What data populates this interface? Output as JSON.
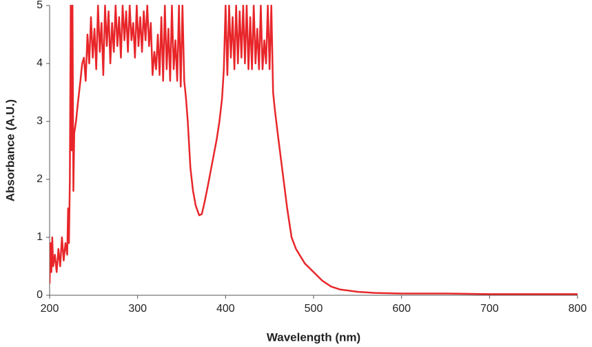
{
  "chart_data": {
    "type": "line",
    "x_label": "Wavelength (nm)",
    "y_label": "Absorbance (A.U.)",
    "x": [
      200,
      201,
      202,
      203,
      204,
      206,
      208,
      210,
      212,
      214,
      216,
      218,
      220,
      221,
      222,
      223,
      224,
      225,
      226,
      227,
      228,
      230,
      232,
      235,
      237,
      239,
      241,
      243,
      245,
      247,
      249,
      251,
      253,
      255,
      257,
      259,
      261,
      263,
      265,
      267,
      269,
      271,
      273,
      275,
      277,
      279,
      281,
      283,
      285,
      287,
      289,
      291,
      293,
      295,
      297,
      299,
      301,
      303,
      305,
      307,
      309,
      311,
      313,
      315,
      317,
      319,
      321,
      323,
      325,
      327,
      329,
      331,
      333,
      335,
      337,
      339,
      341,
      343,
      345,
      347,
      349,
      351,
      353,
      355,
      357,
      360,
      363,
      366,
      370,
      373,
      376,
      380,
      385,
      390,
      393,
      396,
      398,
      400,
      402,
      404,
      406,
      408,
      410,
      412,
      414,
      416,
      418,
      420,
      422,
      424,
      426,
      428,
      430,
      432,
      434,
      436,
      438,
      440,
      442,
      444,
      446,
      448,
      450,
      452,
      454,
      456,
      460,
      465,
      470,
      475,
      480,
      490,
      500,
      510,
      520,
      530,
      550,
      570,
      600,
      650,
      700,
      750,
      800
    ],
    "series": [
      {
        "color": "#e8262a",
        "values": [
          0.2,
          0.9,
          0.4,
          1.0,
          0.5,
          0.7,
          0.4,
          0.8,
          0.5,
          1.0,
          0.6,
          0.9,
          0.7,
          1.5,
          0.9,
          2.0,
          5,
          2.5,
          5,
          1.8,
          2.8,
          3.0,
          3.3,
          3.7,
          4.0,
          4.1,
          3.7,
          4.5,
          4.0,
          4.8,
          4.1,
          4.6,
          3.9,
          5,
          4.2,
          4.7,
          3.8,
          5,
          4.3,
          4.9,
          4.0,
          4.7,
          4.2,
          5,
          4.3,
          4.8,
          4.1,
          5,
          4.4,
          4.9,
          4.2,
          5,
          4.4,
          4.7,
          4.1,
          5,
          4.3,
          4.8,
          4.2,
          4.9,
          4.4,
          5,
          4.3,
          4.7,
          3.8,
          4.2,
          3.9,
          4.5,
          3.8,
          4.8,
          3.7,
          5,
          3.9,
          4.6,
          3.7,
          5,
          3.9,
          4.4,
          3.7,
          5,
          3.6,
          5,
          3.7,
          3.4,
          3.0,
          2.2,
          1.8,
          1.55,
          1.38,
          1.4,
          1.6,
          1.9,
          2.3,
          2.7,
          3.0,
          3.4,
          3.9,
          5,
          3.8,
          5,
          4.1,
          4.8,
          3.9,
          5,
          4.0,
          4.9,
          4.1,
          5,
          4.0,
          5,
          3.9,
          4.8,
          3.9,
          5,
          4.0,
          4.6,
          3.9,
          5,
          3.9,
          4.4,
          4.0,
          5,
          3.9,
          5,
          3.5,
          3.2,
          2.7,
          2.1,
          1.5,
          1.0,
          0.8,
          0.55,
          0.4,
          0.25,
          0.15,
          0.1,
          0.06,
          0.04,
          0.03,
          0.03,
          0.02,
          0.02,
          0.02
        ]
      }
    ],
    "xlim": [
      200,
      800
    ],
    "xticks": [
      200,
      300,
      400,
      500,
      600,
      700,
      800
    ],
    "ylim": [
      0,
      5
    ],
    "yticks": [
      0,
      1,
      2,
      3,
      4,
      5
    ],
    "grid": false
  }
}
